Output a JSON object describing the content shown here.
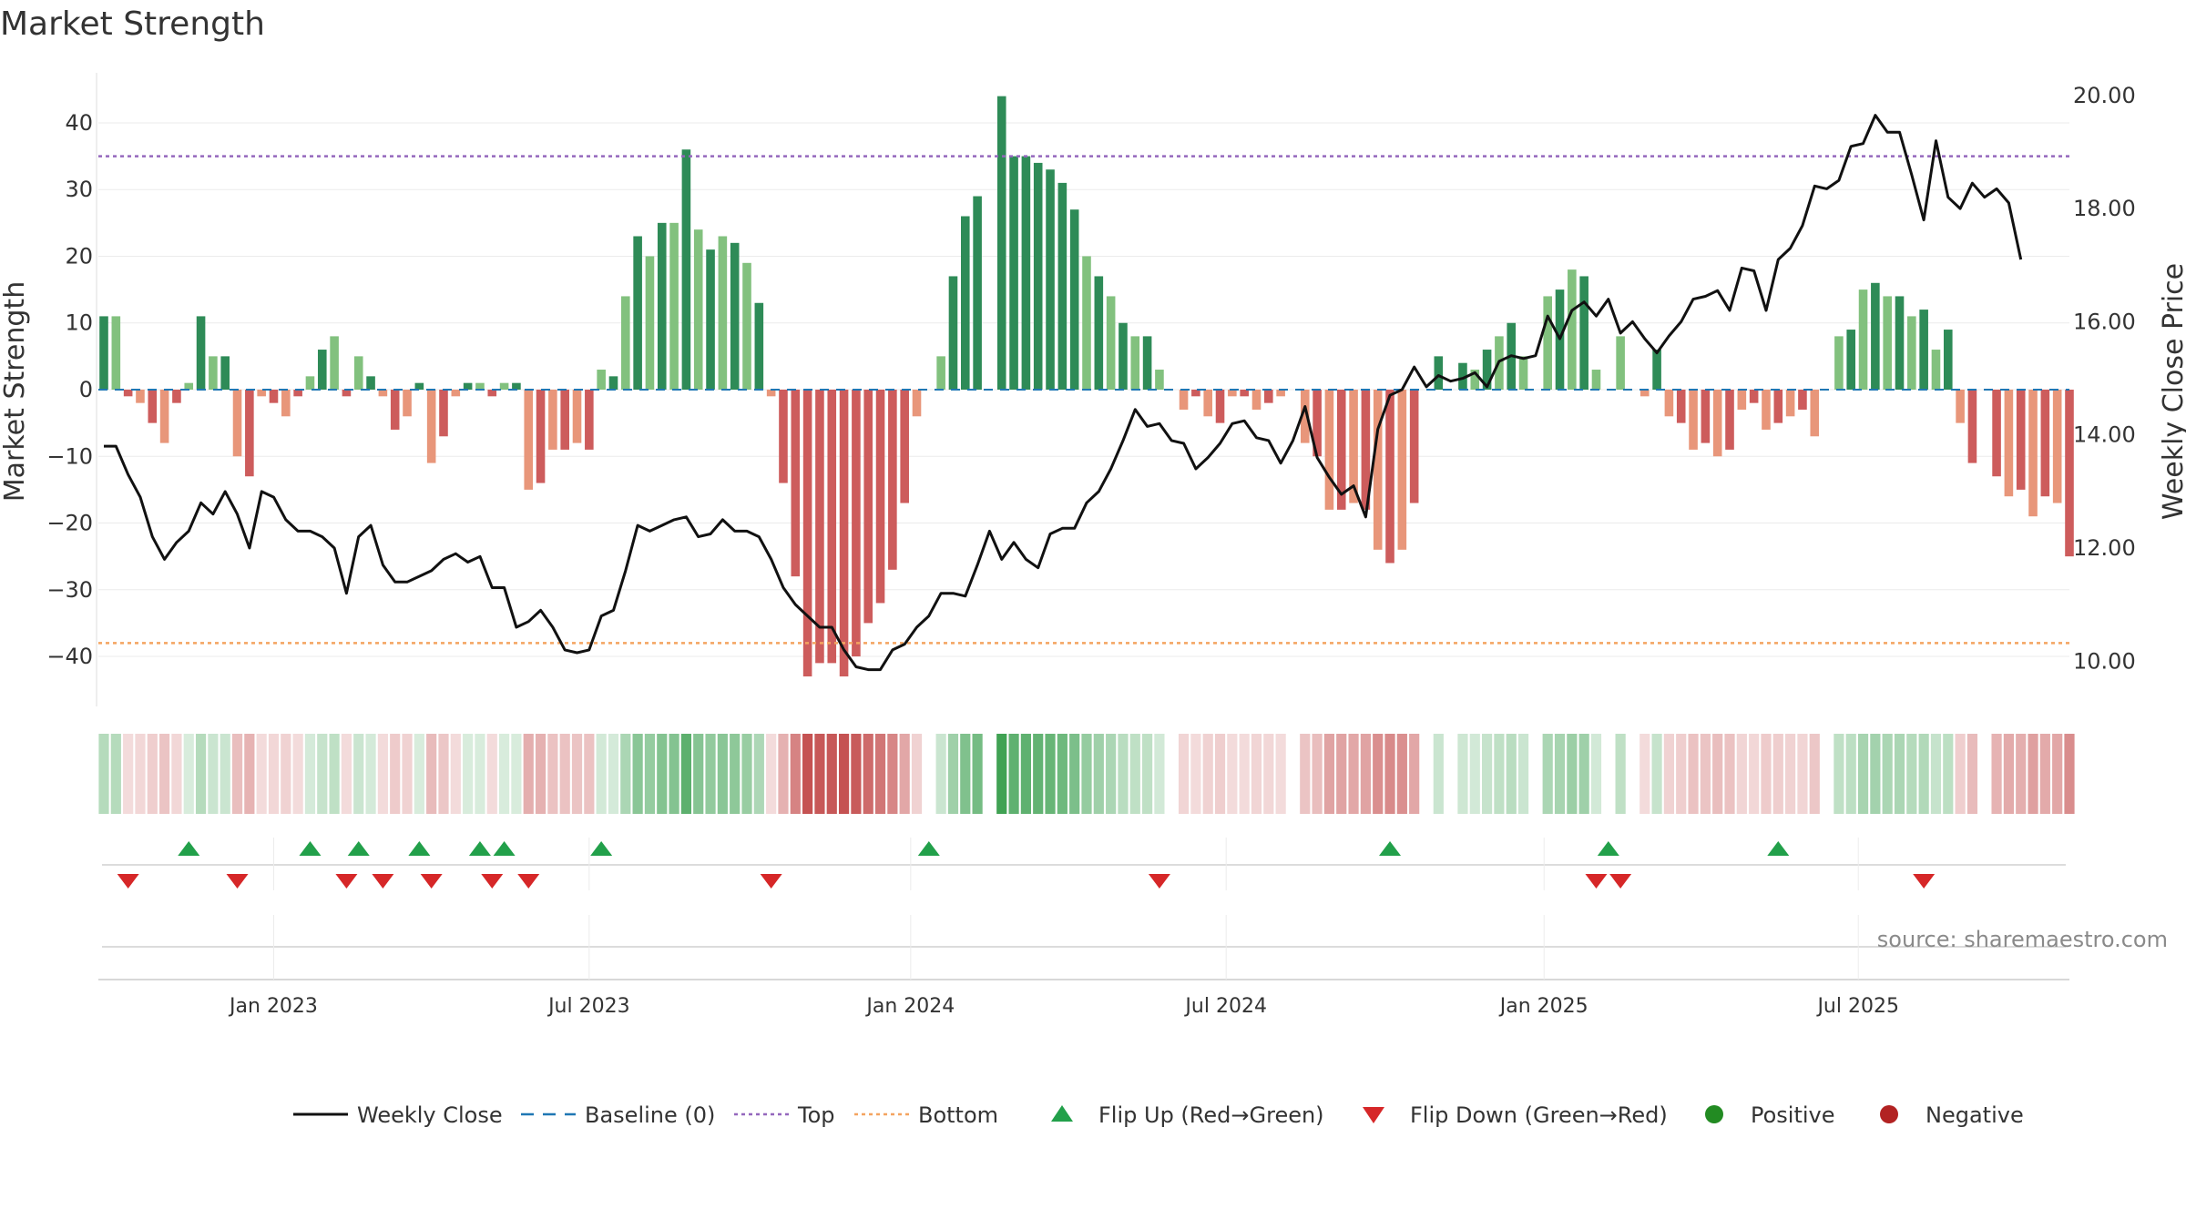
{
  "chart_data": {
    "type": "bar",
    "title": "Market Strength",
    "ylabel_left": "Market Strength",
    "ylabel_right": "Weekly Close Price",
    "source": "source: sharemaestro.com",
    "ylim_left": [
      -47.5,
      47.5
    ],
    "ylim_right": [
      9.2,
      20.4
    ],
    "left_ticks": [
      {
        "v": 40,
        "label": "40"
      },
      {
        "v": 30,
        "label": "30"
      },
      {
        "v": 20,
        "label": "20"
      },
      {
        "v": 10,
        "label": "10"
      },
      {
        "v": 0,
        "label": "0"
      },
      {
        "v": -10,
        "label": "−10"
      },
      {
        "v": -20,
        "label": "−20"
      },
      {
        "v": -30,
        "label": "−30"
      },
      {
        "v": -40,
        "label": "−40"
      }
    ],
    "right_ticks": [
      {
        "v": 20,
        "label": "20.00"
      },
      {
        "v": 18,
        "label": "18.00"
      },
      {
        "v": 16,
        "label": "16.00"
      },
      {
        "v": 14,
        "label": "14.00"
      },
      {
        "v": 12,
        "label": "12.00"
      },
      {
        "v": 10,
        "label": "10.00"
      }
    ],
    "x_ticks": [
      {
        "i": 14,
        "label": "Jan 2023"
      },
      {
        "i": 40,
        "label": "Jul 2023"
      },
      {
        "i": 66.5,
        "label": "Jan 2024"
      },
      {
        "i": 92.5,
        "label": "Jul 2024"
      },
      {
        "i": 118.7,
        "label": "Jan 2025"
      },
      {
        "i": 144.6,
        "label": "Jul 2025"
      }
    ],
    "top_line": 35,
    "bottom_line": -38,
    "baseline": 0,
    "colors": {
      "green_dark": "#2e8b57",
      "green_light": "#82c17e",
      "red_dark": "#cd5c5c",
      "red_light": "#e8967a",
      "close_line": "#111111",
      "baseline": "#1f77b4",
      "top": "#9467bd",
      "bottom": "#f4a460",
      "flip_up": "#22a04a",
      "flip_down": "#d62728",
      "positive": "#228b22",
      "negative": "#b22222"
    },
    "strength": [
      11,
      11,
      -1,
      -2,
      -5,
      -8,
      -2,
      1,
      11,
      5,
      5,
      -10,
      -13,
      -1,
      -2,
      -4,
      -1,
      2,
      6,
      8,
      -1,
      5,
      2,
      -1,
      -6,
      -4,
      1,
      -11,
      -7,
      -1,
      1,
      1,
      -1,
      1,
      1,
      -15,
      -14,
      -9,
      -9,
      -8,
      -9,
      3,
      2,
      14,
      23,
      20,
      25,
      25,
      36,
      24,
      21,
      23,
      22,
      19,
      13,
      -1,
      -14,
      -28,
      -43,
      -41,
      -41,
      -43,
      -40,
      -35,
      -32,
      -27,
      -17,
      -4,
      0,
      5,
      17,
      26,
      29,
      0,
      44,
      35,
      35,
      34,
      33,
      31,
      27,
      20,
      17,
      14,
      10,
      8,
      8,
      3,
      0,
      -3,
      -1,
      -4,
      -5,
      -1,
      -1,
      -3,
      -2,
      -1,
      0,
      -8,
      -10,
      -18,
      -18,
      -17,
      -18,
      -24,
      -26,
      -24,
      -17,
      0,
      5,
      0,
      4,
      3,
      6,
      8,
      10,
      5,
      0,
      14,
      15,
      18,
      17,
      3,
      0,
      8,
      0,
      -1,
      6,
      -4,
      -5,
      -9,
      -8,
      -10,
      -9,
      -3,
      -2,
      -6,
      -5,
      -4,
      -3,
      -7,
      0,
      8,
      9,
      15,
      16,
      14,
      14,
      11,
      12,
      6,
      9,
      -5,
      -11,
      0,
      -13,
      -16,
      -15,
      -19,
      -16,
      -17,
      -25
    ],
    "close": [
      13.8,
      13.8,
      13.3,
      12.9,
      12.2,
      11.8,
      12.1,
      12.3,
      12.8,
      12.6,
      13.0,
      12.6,
      12.0,
      13.0,
      12.9,
      12.5,
      12.3,
      12.3,
      12.2,
      12.0,
      11.2,
      12.2,
      12.4,
      11.7,
      11.4,
      11.4,
      11.5,
      11.6,
      11.8,
      11.9,
      11.75,
      11.85,
      11.3,
      11.3,
      10.6,
      10.7,
      10.9,
      10.6,
      10.2,
      10.15,
      10.2,
      10.8,
      10.9,
      11.6,
      12.4,
      12.3,
      12.4,
      12.5,
      12.55,
      12.2,
      12.25,
      12.5,
      12.3,
      12.3,
      12.2,
      11.8,
      11.3,
      11.0,
      10.8,
      10.6,
      10.6,
      10.2,
      9.9,
      9.85,
      9.85,
      10.2,
      10.3,
      10.6,
      10.8,
      11.2,
      11.2,
      11.15,
      11.7,
      12.3,
      11.8,
      12.1,
      11.8,
      11.65,
      12.25,
      12.35,
      12.35,
      12.8,
      13.0,
      13.4,
      13.9,
      14.45,
      14.15,
      14.2,
      13.9,
      13.85,
      13.4,
      13.6,
      13.85,
      14.2,
      14.25,
      13.95,
      13.9,
      13.5,
      13.9,
      14.5,
      13.6,
      13.25,
      12.95,
      13.1,
      12.55,
      14.1,
      14.7,
      14.8,
      15.2,
      14.85,
      15.05,
      14.95,
      15.0,
      15.1,
      14.85,
      15.3,
      15.4,
      15.35,
      15.4,
      16.1,
      15.7,
      16.2,
      16.35,
      16.1,
      16.4,
      15.8,
      16.0,
      15.7,
      15.45,
      15.75,
      16.0,
      16.4,
      16.45,
      16.55,
      16.2,
      16.95,
      16.9,
      16.2,
      17.1,
      17.3,
      17.7,
      18.4,
      18.35,
      18.5,
      19.1,
      19.15,
      19.65,
      19.35,
      19.35,
      18.6,
      17.8,
      19.2,
      18.2,
      18.0,
      18.45,
      18.2,
      18.35,
      18.1,
      17.1
    ],
    "flip_up": [
      7,
      17,
      21,
      26,
      31,
      33,
      41,
      68,
      106,
      124,
      138
    ],
    "flip_down": [
      2,
      11,
      20,
      23,
      27,
      32,
      35,
      55,
      87,
      123,
      125,
      150
    ],
    "legend": [
      {
        "key": "close",
        "label": "Weekly Close"
      },
      {
        "key": "baseline",
        "label": "Baseline (0)"
      },
      {
        "key": "top",
        "label": "Top"
      },
      {
        "key": "bottom",
        "label": "Bottom"
      },
      {
        "key": "flip_up",
        "label": "Flip Up (Red→Green)"
      },
      {
        "key": "flip_down",
        "label": "Flip Down (Green→Red)"
      },
      {
        "key": "positive",
        "label": "Positive"
      },
      {
        "key": "negative",
        "label": "Negative"
      }
    ]
  }
}
